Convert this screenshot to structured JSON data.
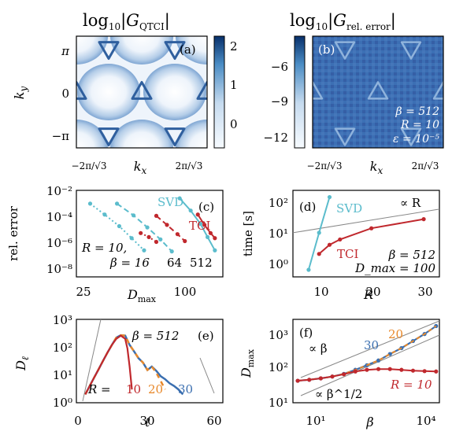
{
  "panels": {
    "a": {
      "title": "log₁₀ |G_QTCI|",
      "title_main": "log",
      "title_sub": "10",
      "title_g": "|G",
      "title_gsub": "QTCI",
      "title_end": "|",
      "panel_label": "(a)",
      "ylabel": "k",
      "ylabel_sub": "y",
      "xlabel": "k",
      "xlabel_sub": "x",
      "y_ticks": [
        "π",
        "0",
        "−π"
      ],
      "x_ticks": [
        "−2π/√3",
        "2π/√3"
      ],
      "colorbar_ticks": [
        "2",
        "1",
        "0"
      ]
    },
    "b": {
      "title_main": "log",
      "title_sub": "10",
      "title_g": "|G",
      "title_gsub": "rel. error",
      "title_end": "|",
      "panel_label": "(b)",
      "xlabel": "k",
      "xlabel_sub": "x",
      "x_ticks": [
        "−2π/√3",
        "2π/√3"
      ],
      "colorbar_ticks": [
        "−6",
        "−9",
        "−12"
      ],
      "annotations": [
        "β = 512",
        "R = 10",
        "ε = 10⁻⁵"
      ]
    },
    "c": {
      "panel_label": "(c)",
      "ylabel": "rel. error",
      "xlabel": "D",
      "xlabel_sub": "max",
      "y_ticks": [
        "10⁻²",
        "10⁻⁴",
        "10⁻⁶",
        "10⁻⁸"
      ],
      "x_ticks": [
        "25",
        "100"
      ],
      "labels": {
        "svd": "SVD",
        "tci": "TCI",
        "r": "R = 10,",
        "beta": "β = 16",
        "b64": "64",
        "b512": "512"
      }
    },
    "d": {
      "panel_label": "(d)",
      "ylabel": "time [s]",
      "xlabel": "R",
      "y_ticks": [
        "10²",
        "10¹",
        "10⁰"
      ],
      "x_ticks": [
        "10",
        "20",
        "30"
      ],
      "labels": {
        "svd": "SVD",
        "tci": "TCI",
        "prop": "∝ R",
        "beta": "β = 512",
        "dmax": "D_max = 100"
      }
    },
    "e": {
      "panel_label": "(e)",
      "ylabel": "D",
      "ylabel_sub": "ℓ",
      "xlabel": "ℓ",
      "y_ticks": [
        "10³",
        "10²",
        "10¹",
        "10⁰"
      ],
      "x_ticks": [
        "0",
        "30",
        "60"
      ],
      "labels": {
        "beta": "β = 512",
        "r": "R =",
        "r10": "10",
        "r20": "20",
        "r30": "30"
      }
    },
    "f": {
      "panel_label": "(f)",
      "ylabel": "D",
      "ylabel_sub": "max",
      "xlabel": "β",
      "y_ticks": [
        "10³",
        "10²",
        "10¹"
      ],
      "x_ticks": [
        "10¹",
        "10⁴"
      ],
      "labels": {
        "propb": "∝ β",
        "propsqrt": "∝ β^1/2",
        "r10": "R = 10",
        "r20": "20",
        "r30": "30"
      }
    }
  },
  "colors": {
    "teal": "#5bbccc",
    "red": "#c0282d",
    "orange": "#e8882a",
    "blue": "#3b6fb0",
    "gray": "#888888"
  },
  "chart_data": [
    {
      "panel": "c",
      "type": "line",
      "xlabel": "D_max",
      "ylabel": "rel. error",
      "x_scale": "log",
      "y_scale": "log",
      "xlim": [
        22,
        130
      ],
      "ylim": [
        3e-09,
        0.01
      ],
      "series": [
        {
          "name": "SVD",
          "beta": 16,
          "style": "dotted",
          "points": [
            [
              26,
              0.001
            ],
            [
              31,
              0.00015
            ],
            [
              37,
              2e-05
            ],
            [
              43,
              2.5e-06
            ],
            [
              50,
              3e-07
            ]
          ]
        },
        {
          "name": "SVD",
          "beta": 64,
          "style": "dashed",
          "points": [
            [
              36,
              0.001
            ],
            [
              44,
              0.00013
            ],
            [
              52,
              1.6e-05
            ],
            [
              61,
              2e-06
            ],
            [
              70,
              2.5e-07
            ]
          ]
        },
        {
          "name": "SVD",
          "beta": 512,
          "style": "solid",
          "points": [
            [
              77,
              0.0025
            ],
            [
              88,
              0.0003
            ],
            [
              99,
              3e-05
            ],
            [
              108,
              3e-06
            ],
            [
              118,
              3e-07
            ]
          ]
        },
        {
          "name": "TCI",
          "beta": 16,
          "style": "dotted",
          "points": [
            [
              48,
              6e-06
            ],
            [
              53,
              3e-06
            ],
            [
              58,
              1.3e-06
            ]
          ]
        },
        {
          "name": "TCI",
          "beta": 64,
          "style": "dashed",
          "points": [
            [
              58,
              0.00012
            ],
            [
              66,
              2.5e-05
            ],
            [
              75,
              5e-06
            ],
            [
              82,
              1.5e-06
            ]
          ]
        },
        {
          "name": "TCI",
          "beta": 512,
          "style": "solid",
          "points": [
            [
              96,
              0.00015
            ],
            [
              104,
              2.5e-05
            ],
            [
              112,
              6e-06
            ],
            [
              118,
              2.5e-06
            ]
          ]
        }
      ]
    },
    {
      "panel": "d",
      "type": "line",
      "xlabel": "R",
      "ylabel": "time [s]",
      "y_scale": "log",
      "xlim": [
        5,
        33
      ],
      "ylim": [
        0.35,
        250
      ],
      "series": [
        {
          "name": "SVD",
          "points": [
            [
              8,
              0.6
            ],
            [
              10,
              10
            ],
            [
              12,
              150
            ]
          ]
        },
        {
          "name": "TCI",
          "points": [
            [
              10,
              2
            ],
            [
              12,
              4
            ],
            [
              14,
              6
            ],
            [
              20,
              14
            ],
            [
              30,
              28
            ]
          ]
        }
      ]
    },
    {
      "panel": "e",
      "type": "line",
      "xlabel": "ℓ",
      "ylabel": "D_ℓ",
      "y_scale": "log",
      "xlim": [
        -3,
        63
      ],
      "ylim": [
        1,
        1000
      ],
      "series": [
        {
          "name": "R = 10",
          "points": [
            [
              1,
              2
            ],
            [
              3,
              4
            ],
            [
              5,
              8
            ],
            [
              7,
              16
            ],
            [
              9,
              32
            ],
            [
              11,
              64
            ],
            [
              13,
              120
            ],
            [
              15,
              200
            ],
            [
              17,
              260
            ],
            [
              19,
              200
            ],
            [
              20,
              90
            ],
            [
              21,
              20
            ],
            [
              22,
              3
            ]
          ]
        },
        {
          "name": "R = 20",
          "points": [
            [
              1,
              2
            ],
            [
              3,
              4
            ],
            [
              5,
              8
            ],
            [
              7,
              16
            ],
            [
              9,
              32
            ],
            [
              11,
              64
            ],
            [
              13,
              120
            ],
            [
              15,
              220
            ],
            [
              17,
              270
            ],
            [
              19,
              260
            ],
            [
              21,
              120
            ],
            [
              23,
              70
            ],
            [
              25,
              40
            ],
            [
              27,
              28
            ],
            [
              29,
              15
            ],
            [
              31,
              20
            ],
            [
              33,
              12
            ],
            [
              35,
              6
            ],
            [
              37,
              3
            ]
          ]
        },
        {
          "name": "R = 30",
          "points": [
            [
              1,
              2
            ],
            [
              3,
              4
            ],
            [
              5,
              8
            ],
            [
              7,
              16
            ],
            [
              9,
              32
            ],
            [
              11,
              64
            ],
            [
              13,
              120
            ],
            [
              15,
              220
            ],
            [
              17,
              270
            ],
            [
              19,
              260
            ],
            [
              21,
              120
            ],
            [
              23,
              70
            ],
            [
              25,
              40
            ],
            [
              27,
              28
            ],
            [
              29,
              15
            ],
            [
              31,
              20
            ],
            [
              33,
              14
            ],
            [
              35,
              9
            ],
            [
              37,
              7
            ],
            [
              39,
              5
            ],
            [
              41,
              4
            ],
            [
              43,
              3
            ],
            [
              45,
              2
            ]
          ]
        }
      ]
    },
    {
      "panel": "f",
      "type": "line",
      "xlabel": "β",
      "ylabel": "D_max",
      "x_scale": "log",
      "y_scale": "log",
      "xlim": [
        3,
        20000
      ],
      "ylim": [
        10,
        3000
      ],
      "series": [
        {
          "name": "R = 10",
          "points": [
            [
              4,
              45
            ],
            [
              8,
              48
            ],
            [
              16,
              53
            ],
            [
              32,
              60
            ],
            [
              64,
              70
            ],
            [
              128,
              85
            ],
            [
              256,
              95
            ],
            [
              512,
              100
            ],
            [
              1024,
              100
            ],
            [
              2048,
              95
            ],
            [
              4096,
              90
            ],
            [
              8192,
              87
            ],
            [
              16384,
              85
            ]
          ]
        },
        {
          "name": "R = 20",
          "points": [
            [
              4,
              45
            ],
            [
              8,
              48
            ],
            [
              16,
              53
            ],
            [
              32,
              60
            ],
            [
              64,
              72
            ],
            [
              128,
              95
            ],
            [
              256,
              130
            ],
            [
              512,
              180
            ],
            [
              1024,
              280
            ],
            [
              2048,
              420
            ],
            [
              4096,
              680
            ],
            [
              8192,
              1100
            ],
            [
              16384,
              1900
            ]
          ]
        },
        {
          "name": "R = 30",
          "points": [
            [
              4,
              45
            ],
            [
              8,
              48
            ],
            [
              16,
              53
            ],
            [
              32,
              60
            ],
            [
              64,
              72
            ],
            [
              128,
              95
            ],
            [
              256,
              130
            ],
            [
              512,
              180
            ],
            [
              1024,
              280
            ],
            [
              2048,
              420
            ],
            [
              4096,
              680
            ],
            [
              8192,
              1100
            ],
            [
              16384,
              1900
            ]
          ]
        }
      ]
    }
  ]
}
